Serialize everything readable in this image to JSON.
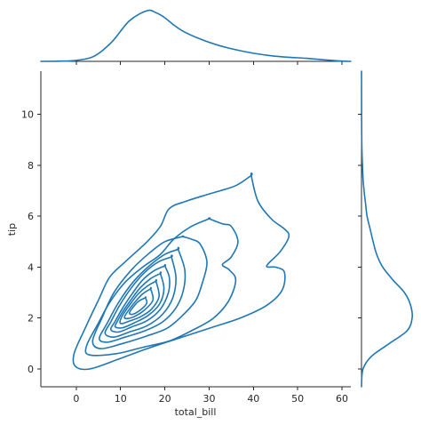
{
  "chart_data": {
    "type": "kde-joint",
    "xlabel": "total_bill",
    "ylabel": "tip",
    "xlim": [
      -8,
      62
    ],
    "ylim": [
      -0.7,
      11.7
    ],
    "xticks": [
      0,
      10,
      20,
      30,
      40,
      50,
      60
    ],
    "yticks": [
      0,
      2,
      4,
      6,
      8,
      10
    ],
    "color": "#1f77b4",
    "contours": [
      [
        [
          39.5,
          7.6
        ],
        [
          36,
          7.2
        ],
        [
          30.5,
          6.9
        ],
        [
          25,
          6.6
        ],
        [
          21,
          6.3
        ],
        [
          19,
          5.6
        ],
        [
          16,
          5.0
        ],
        [
          11,
          4.2
        ],
        [
          7.5,
          3.6
        ],
        [
          5,
          2.7
        ],
        [
          2,
          1.6
        ],
        [
          -0.5,
          0.6
        ],
        [
          -0.2,
          0.1
        ],
        [
          3,
          0.0
        ],
        [
          9,
          0.35
        ],
        [
          16,
          0.8
        ],
        [
          23,
          1.2
        ],
        [
          30,
          1.6
        ],
        [
          37,
          2.0
        ],
        [
          43,
          2.5
        ],
        [
          46.5,
          3.1
        ],
        [
          47,
          3.8
        ],
        [
          45,
          4.0
        ],
        [
          43,
          4.05
        ],
        [
          46,
          4.6
        ],
        [
          48,
          5.2
        ],
        [
          47,
          5.5
        ],
        [
          44,
          5.9
        ],
        [
          41,
          6.6
        ],
        [
          39.5,
          7.6
        ]
      ],
      [
        [
          30,
          5.9
        ],
        [
          26,
          5.6
        ],
        [
          22,
          5.1
        ],
        [
          19,
          4.5
        ],
        [
          15,
          4.0
        ],
        [
          11,
          3.4
        ],
        [
          7.5,
          2.6
        ],
        [
          5,
          1.8
        ],
        [
          2.3,
          0.9
        ],
        [
          3,
          0.55
        ],
        [
          9,
          0.6
        ],
        [
          15,
          0.85
        ],
        [
          21,
          1.1
        ],
        [
          26,
          1.5
        ],
        [
          31,
          2.0
        ],
        [
          34.5,
          2.7
        ],
        [
          36,
          3.5
        ],
        [
          34.5,
          3.9
        ],
        [
          33,
          4.1
        ],
        [
          35,
          4.4
        ],
        [
          36.5,
          5.0
        ],
        [
          35,
          5.6
        ],
        [
          33,
          5.7
        ],
        [
          30,
          5.9
        ]
      ],
      [
        [
          24,
          5.2
        ],
        [
          20,
          5.0
        ],
        [
          16.5,
          4.55
        ],
        [
          12.5,
          3.9
        ],
        [
          8.5,
          3.0
        ],
        [
          5.8,
          2.0
        ],
        [
          3.7,
          1.1
        ],
        [
          5.5,
          0.8
        ],
        [
          10.5,
          1.0
        ],
        [
          16,
          1.3
        ],
        [
          20.5,
          1.6
        ],
        [
          24,
          2.1
        ],
        [
          27,
          2.7
        ],
        [
          28.5,
          3.4
        ],
        [
          29.5,
          4.2
        ],
        [
          28,
          4.9
        ],
        [
          26,
          5.1
        ],
        [
          24,
          5.2
        ]
      ],
      [
        [
          23,
          4.7
        ],
        [
          20,
          4.5
        ],
        [
          16.5,
          4.05
        ],
        [
          13,
          3.45
        ],
        [
          9.5,
          2.6
        ],
        [
          7,
          1.8
        ],
        [
          5.2,
          1.2
        ],
        [
          7,
          1.05
        ],
        [
          11,
          1.25
        ],
        [
          15.5,
          1.5
        ],
        [
          19.5,
          1.85
        ],
        [
          22.5,
          2.4
        ],
        [
          24.2,
          3.1
        ],
        [
          24.5,
          3.9
        ],
        [
          23,
          4.7
        ]
      ],
      [
        [
          21.5,
          4.4
        ],
        [
          18.5,
          4.2
        ],
        [
          15.5,
          3.8
        ],
        [
          12.5,
          3.2
        ],
        [
          9.8,
          2.5
        ],
        [
          7.8,
          1.85
        ],
        [
          6.5,
          1.4
        ],
        [
          8.5,
          1.25
        ],
        [
          12,
          1.45
        ],
        [
          16,
          1.7
        ],
        [
          19.5,
          2.15
        ],
        [
          21.8,
          2.8
        ],
        [
          22.5,
          3.6
        ],
        [
          21.5,
          4.4
        ]
      ],
      [
        [
          20,
          4.05
        ],
        [
          17.5,
          3.85
        ],
        [
          15,
          3.5
        ],
        [
          12.8,
          3.0
        ],
        [
          10.5,
          2.4
        ],
        [
          8.7,
          1.85
        ],
        [
          7.8,
          1.55
        ],
        [
          9.5,
          1.45
        ],
        [
          12.5,
          1.65
        ],
        [
          16,
          1.9
        ],
        [
          19,
          2.35
        ],
        [
          20.8,
          3.0
        ],
        [
          21,
          3.6
        ],
        [
          20,
          4.05
        ]
      ],
      [
        [
          19,
          3.75
        ],
        [
          16.8,
          3.55
        ],
        [
          14.5,
          3.2
        ],
        [
          12.5,
          2.75
        ],
        [
          10.5,
          2.25
        ],
        [
          9.2,
          1.85
        ],
        [
          8.8,
          1.65
        ],
        [
          10.5,
          1.62
        ],
        [
          13.2,
          1.82
        ],
        [
          16.2,
          2.1
        ],
        [
          18.8,
          2.55
        ],
        [
          19.8,
          3.15
        ],
        [
          19,
          3.75
        ]
      ],
      [
        [
          18,
          3.45
        ],
        [
          16,
          3.25
        ],
        [
          14,
          2.95
        ],
        [
          12.2,
          2.55
        ],
        [
          10.6,
          2.15
        ],
        [
          9.9,
          1.88
        ],
        [
          10.2,
          1.78
        ],
        [
          12,
          1.88
        ],
        [
          14.5,
          2.05
        ],
        [
          17,
          2.35
        ],
        [
          18.7,
          2.85
        ],
        [
          18,
          3.45
        ]
      ],
      [
        [
          16.8,
          3.15
        ],
        [
          15,
          2.95
        ],
        [
          13.2,
          2.62
        ],
        [
          11.8,
          2.3
        ],
        [
          10.9,
          2.05
        ],
        [
          11.3,
          1.98
        ],
        [
          13,
          2.05
        ],
        [
          15.3,
          2.3
        ],
        [
          17.3,
          2.7
        ],
        [
          16.8,
          3.15
        ]
      ],
      [
        [
          15.6,
          2.8
        ],
        [
          14,
          2.65
        ],
        [
          12.8,
          2.42
        ],
        [
          12,
          2.2
        ],
        [
          12.8,
          2.15
        ],
        [
          14.5,
          2.32
        ],
        [
          15.9,
          2.58
        ],
        [
          15.6,
          2.8
        ]
      ]
    ],
    "marginal_x": {
      "x": [
        -8,
        -4,
        0,
        4,
        8,
        12,
        16,
        18,
        20,
        22,
        24,
        28,
        32,
        36,
        40,
        44,
        48,
        52,
        56,
        60,
        62
      ],
      "density": [
        0.0,
        0.004,
        0.02,
        0.1,
        0.38,
        0.8,
        1.0,
        0.96,
        0.86,
        0.72,
        0.6,
        0.44,
        0.32,
        0.23,
        0.16,
        0.11,
        0.08,
        0.06,
        0.03,
        0.005,
        0.0
      ]
    },
    "marginal_y": {
      "y": [
        -0.7,
        0.0,
        0.5,
        1.0,
        1.5,
        2.0,
        2.5,
        3.0,
        3.5,
        4.0,
        4.5,
        5.0,
        5.5,
        6.0,
        6.5,
        7.0,
        7.5,
        8.0,
        8.5,
        9.0,
        10.0,
        11.7
      ],
      "density": [
        0.0,
        0.03,
        0.2,
        0.55,
        0.9,
        1.0,
        0.97,
        0.85,
        0.62,
        0.42,
        0.3,
        0.23,
        0.17,
        0.11,
        0.08,
        0.05,
        0.03,
        0.02,
        0.01,
        0.005,
        0.002,
        0.0
      ]
    }
  }
}
